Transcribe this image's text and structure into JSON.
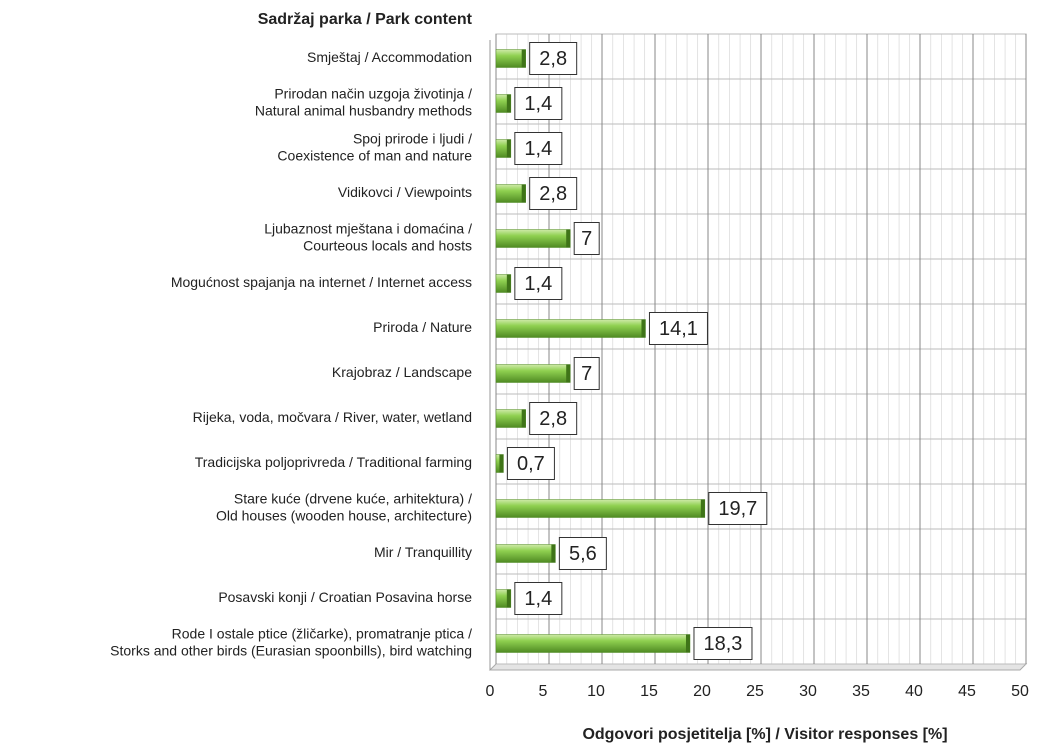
{
  "chart_data": {
    "type": "bar",
    "orientation": "horizontal",
    "title": "Sadržaj parka / Park content",
    "x_label": "Odgovori posjetitelja [%] / Visitor responses [%]",
    "categories": [
      [
        "Smještaj / Accommodation"
      ],
      [
        "Prirodan način uzgoja životinja /",
        "Natural animal husbandry methods"
      ],
      [
        "Spoj prirode i ljudi /",
        "Coexistence of man and nature"
      ],
      [
        "Vidikovci /  Viewpoints"
      ],
      [
        "Ljubaznost mještana i domaćina /",
        "Courteous locals and hosts"
      ],
      [
        "Mogućnost spajanja na internet / Internet access"
      ],
      [
        "Priroda / Nature"
      ],
      [
        "Krajobraz / Landscape"
      ],
      [
        "Rijeka, voda, močvara / River, water, wetland"
      ],
      [
        "Tradicijska poljoprivreda /  Traditional farming"
      ],
      [
        "Stare kuće (drvene kuće, arhitektura) /",
        "Old houses (wooden house, architecture)"
      ],
      [
        "Mir / Tranquillity"
      ],
      [
        "Posavski konji /  Croatian Posavina horse"
      ],
      [
        "Rode I ostale ptice (žličarke), promatranje ptica /",
        "Storks and other birds (Eurasian spoonbills), bird watching"
      ]
    ],
    "values": [
      2.8,
      1.4,
      1.4,
      2.8,
      7,
      1.4,
      14.1,
      7,
      2.8,
      0.7,
      19.7,
      5.6,
      1.4,
      18.3
    ],
    "value_labels": [
      "2,8",
      "1,4",
      "1,4",
      "2,8",
      "7",
      "1,4",
      "14,1",
      "7",
      "2,8",
      "0,7",
      "19,7",
      "5,6",
      "1,4",
      "18,3"
    ],
    "color": "#7cc242",
    "xlim": [
      0,
      50
    ],
    "xticks": [
      0,
      5,
      10,
      15,
      20,
      25,
      30,
      35,
      40,
      45,
      50
    ],
    "grid": true
  }
}
